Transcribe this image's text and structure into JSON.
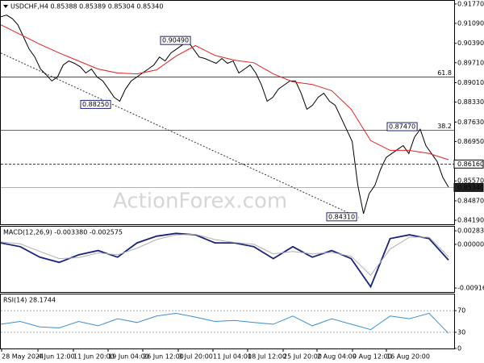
{
  "chart_data": [
    {
      "type": "line",
      "title": "USDCHF,H4 0.85388 0.85389 0.85304 0.85340",
      "watermark": "ActionForex.com",
      "ylim": [
        0.8405,
        0.9188
      ],
      "yticks": [
        {
          "value": 0.9177,
          "label": "0.91770"
        },
        {
          "value": 0.9109,
          "label": "0.91090"
        },
        {
          "value": 0.9039,
          "label": "0.90390"
        },
        {
          "value": 0.8971,
          "label": "0.89710"
        },
        {
          "value": 0.8901,
          "label": "0.89010"
        },
        {
          "value": 0.8833,
          "label": "0.88330"
        },
        {
          "value": 0.8763,
          "label": "0.87630"
        },
        {
          "value": 0.8695,
          "label": "0.86950"
        },
        {
          "value": 0.8557,
          "label": "0.85570"
        },
        {
          "value": 0.8487,
          "label": "0.84870"
        },
        {
          "value": 0.8419,
          "label": "0.84190"
        }
      ],
      "series": [
        {
          "name": "USDCHF",
          "color": "#000000",
          "values": [
            0.9132,
            0.9138,
            0.9126,
            0.9104,
            0.9062,
            0.9019,
            0.8991,
            0.8949,
            0.8929,
            0.8907,
            0.8921,
            0.8963,
            0.8977,
            0.8969,
            0.8957,
            0.8935,
            0.8949,
            0.8921,
            0.8907,
            0.8879,
            0.885,
            0.8836,
            0.8879,
            0.8907,
            0.8921,
            0.8935,
            0.8949,
            0.8963,
            0.8991,
            0.8977,
            0.9005,
            0.9019,
            0.9033,
            0.9047,
            0.9019,
            0.8991,
            0.8986,
            0.8977,
            0.8969,
            0.8986,
            0.8969,
            0.8977,
            0.8935,
            0.8949,
            0.8963,
            0.8935,
            0.8893,
            0.8836,
            0.885,
            0.8879,
            0.8893,
            0.8907,
            0.8907,
            0.8864,
            0.8808,
            0.8822,
            0.885,
            0.8864,
            0.8836,
            0.8822,
            0.878,
            0.8738,
            0.8695,
            0.8541,
            0.8442,
            0.8512,
            0.8541,
            0.8597,
            0.8639,
            0.8653,
            0.8667,
            0.8681,
            0.8653,
            0.871,
            0.8738,
            0.8681,
            0.8653,
            0.8625,
            0.8569,
            0.8535
          ]
        },
        {
          "name": "MA",
          "color": "#e02020",
          "values": [
            0.9104,
            0.907,
            0.9036,
            0.9005,
            0.8977,
            0.8949,
            0.8935,
            0.8932,
            0.8946,
            0.8994,
            0.9031,
            0.8997,
            0.898,
            0.8971,
            0.8932,
            0.8904,
            0.8895,
            0.8873,
            0.8808,
            0.8698,
            0.8664,
            0.8664,
            0.8653,
            0.8631
          ]
        }
      ],
      "annotations": [
        {
          "label": "0.90490",
          "value": 0.9049
        },
        {
          "label": "0.88250",
          "value": 0.8825
        },
        {
          "label": "0.87470",
          "value": 0.8747
        },
        {
          "label": "0.84310",
          "value": 0.8431
        }
      ],
      "levels": [
        {
          "label": "61.8",
          "value": 0.8921
        },
        {
          "label": "38.2",
          "value": 0.8734
        }
      ],
      "price_lines": [
        {
          "label": "0.86160",
          "value": 0.8616,
          "dashed": true
        },
        {
          "label": "0.85340",
          "value": 0.8534,
          "dashed": false
        }
      ],
      "trendline": [
        0.9005,
        0.8428
      ]
    },
    {
      "type": "line",
      "label": "MACD(12,26,9) -0.003380 -0.002575",
      "ylim": [
        -0.01,
        0.0037
      ],
      "yticks": [
        0.002835,
        {
          "value": 0,
          "label": "0.00000"
        },
        -0.009161
      ],
      "series": [
        {
          "name": "MACD",
          "color": "#1a237e",
          "values": [
            0.0003,
            -0.0005,
            -0.0027,
            -0.0038,
            -0.0022,
            -0.0013,
            -0.0027,
            0.0003,
            0.0017,
            0.0023,
            0.002,
            0.0003,
            0.0003,
            -0.0005,
            -0.003,
            -0.0005,
            -0.0027,
            -0.0013,
            -0.003,
            -0.0089,
            0.0012,
            0.002,
            0.0012,
            -0.0033
          ]
        },
        {
          "name": "Signal",
          "color": "#b0b0b0",
          "values": [
            0.0005,
            0.0001,
            -0.0015,
            -0.003,
            -0.0028,
            -0.0018,
            -0.0022,
            -0.0008,
            0.001,
            0.002,
            0.0021,
            0.001,
            0.0004,
            0.0,
            -0.002,
            -0.0015,
            -0.002,
            -0.0017,
            -0.0025,
            -0.0065,
            -0.001,
            0.0015,
            0.0015,
            -0.0026
          ]
        }
      ]
    },
    {
      "type": "line",
      "label": "RSI(14) 28.1744",
      "ylim": [
        0,
        100
      ],
      "yticks": [
        70,
        30,
        0
      ],
      "series": [
        {
          "name": "RSI",
          "color": "#3a8fd6",
          "values": [
            45,
            50,
            40,
            38,
            50,
            42,
            55,
            48,
            60,
            65,
            58,
            50,
            52,
            48,
            45,
            60,
            42,
            55,
            45,
            35,
            60,
            55,
            65,
            28
          ]
        }
      ],
      "x_labels": [
        "28 May 2024",
        "4 Jun 12:00",
        "11 Jun 20:00",
        "19 Jun 04:00",
        "26 Jun 12:00",
        "3 Jul 20:00",
        "11 Jul 04:00",
        "18 Jul 12:00",
        "25 Jul 20:00",
        "2 Aug 04:00",
        "9 Aug 12:00",
        "16 Aug 20:00"
      ]
    }
  ]
}
